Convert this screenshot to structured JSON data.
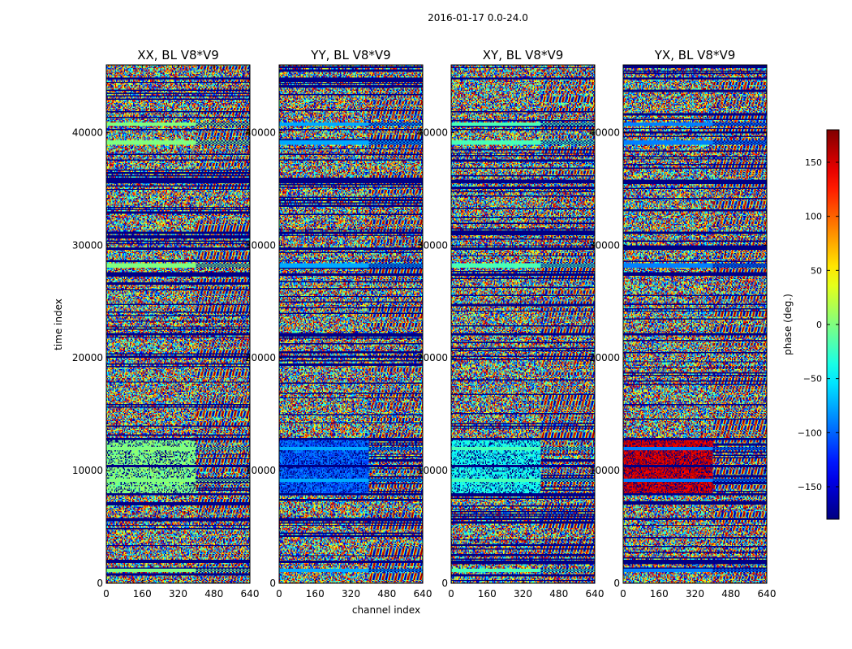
{
  "chart_data": {
    "type": "heatmap",
    "suptitle": "2016-01-17 0.0-24.0",
    "xlabel": "channel index",
    "ylabel": "time index",
    "xlim": [
      0,
      640
    ],
    "ylim": [
      0,
      46000
    ],
    "xticks": [
      0,
      160,
      320,
      480,
      640
    ],
    "xtick_labels": [
      "0",
      "160",
      "320",
      "480",
      "640"
    ],
    "yticks": [
      0,
      10000,
      20000,
      30000,
      40000
    ],
    "ytick_labels": [
      "0",
      "10000",
      "20000",
      "30000",
      "40000"
    ],
    "panels": [
      {
        "title": "XX, BL V8*V9",
        "flagged_phase_deg": 0,
        "low_channel_block_phase_deg": 0
      },
      {
        "title": "YY, BL V8*V9",
        "flagged_phase_deg": -75,
        "low_channel_block_phase_deg": -100
      },
      {
        "title": "XY, BL V8*V9",
        "flagged_phase_deg": -20,
        "low_channel_block_phase_deg": -40
      },
      {
        "title": "YX, BL V8*V9",
        "flagged_phase_deg": -90,
        "low_channel_block_phase_deg": 150
      }
    ],
    "striped_channel_start": 400,
    "flagged_time_ranges": [
      [
        1000,
        1300
      ],
      [
        9000,
        9300
      ],
      [
        11800,
        12100
      ],
      [
        28000,
        28400
      ],
      [
        38900,
        39300
      ],
      [
        40600,
        40900
      ]
    ],
    "dropout_time_ranges": [
      [
        1800,
        2000
      ],
      [
        5600,
        5800
      ],
      [
        7800,
        8000
      ],
      [
        10300,
        10500
      ],
      [
        12700,
        12900
      ],
      [
        22000,
        22200
      ],
      [
        27300,
        27500
      ],
      [
        29600,
        29800
      ],
      [
        31000,
        31200
      ],
      [
        35500,
        35800
      ],
      [
        44700,
        44900
      ]
    ],
    "low_channel_block_time_range": [
      7800,
      12700
    ],
    "colorbar": {
      "label": "phase (deg.)",
      "range": [
        -180,
        180
      ],
      "ticks": [
        150,
        100,
        50,
        0,
        -50,
        -100,
        -150
      ],
      "tick_labels": [
        "150",
        "100",
        "50",
        "0",
        "−50",
        "−100",
        "−150"
      ],
      "colormap": "jet"
    }
  }
}
